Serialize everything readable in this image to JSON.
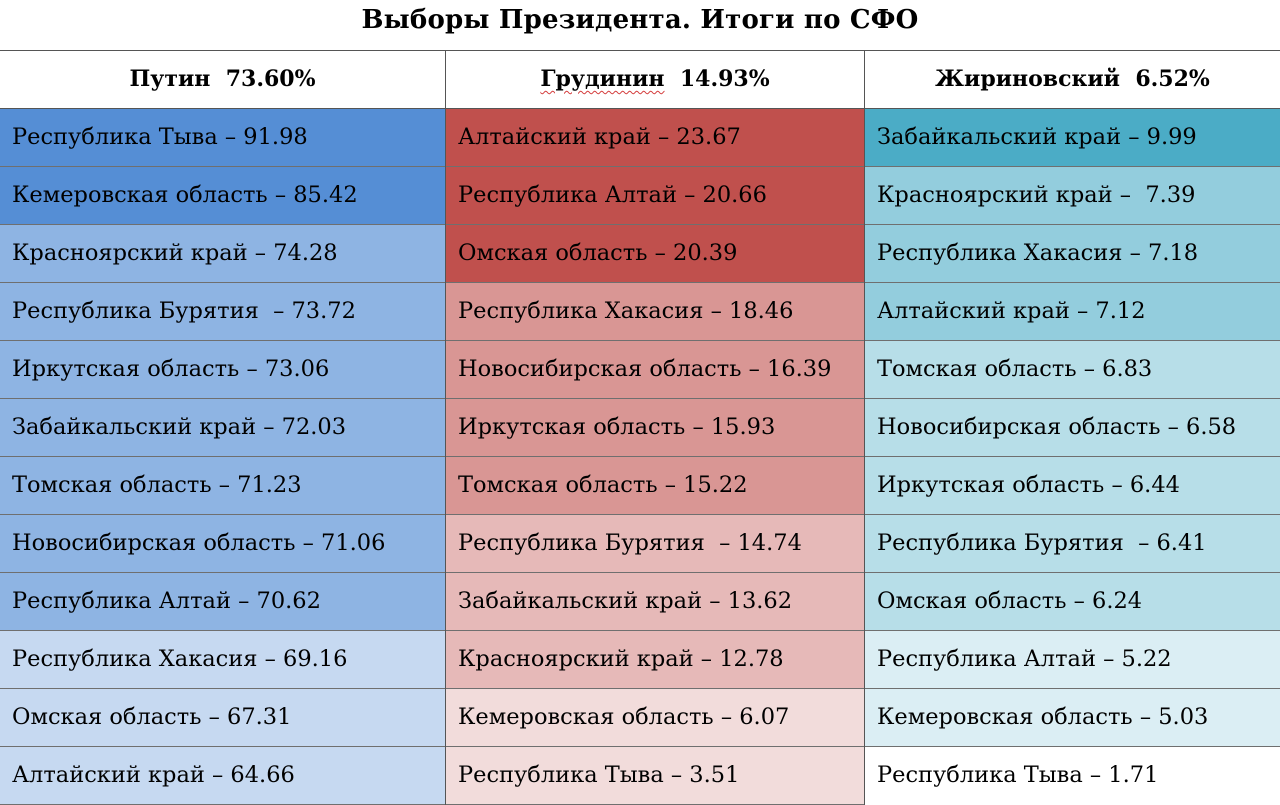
{
  "title": "Выборы Президента. Итоги по СФО",
  "columns": [
    {
      "candidate": "Путин",
      "percent": "73.60%",
      "rows": [
        {
          "text": "Республика Тыва – 91.98",
          "color": "#558ed5"
        },
        {
          "text": "Кемеровская область – 85.42",
          "color": "#558ed5"
        },
        {
          "text": "Красноярский край – 74.28",
          "color": "#8eb4e3"
        },
        {
          "text": "Республика Бурятия  – 73.72",
          "color": "#8eb4e3"
        },
        {
          "text": "Иркутская область – 73.06",
          "color": "#8eb4e3"
        },
        {
          "text": "Забайкальский край – 72.03",
          "color": "#8eb4e3"
        },
        {
          "text": "Томская область – 71.23",
          "color": "#8eb4e3"
        },
        {
          "text": "Новосибирская область – 71.06",
          "color": "#8eb4e3"
        },
        {
          "text": "Республика Алтай – 70.62",
          "color": "#8eb4e3"
        },
        {
          "text": "Республика Хакасия – 69.16",
          "color": "#c6d9f1"
        },
        {
          "text": "Омская область – 67.31",
          "color": "#c6d9f1"
        },
        {
          "text": "Алтайский край – 64.66",
          "color": "#c6d9f1"
        }
      ]
    },
    {
      "candidate": "Грудинин",
      "percent": "14.93%",
      "rows": [
        {
          "text": "Алтайский край – 23.67",
          "color": "#c0504d"
        },
        {
          "text": "Республика Алтай – 20.66",
          "color": "#c0504d"
        },
        {
          "text": "Омская область – 20.39",
          "color": "#c0504d"
        },
        {
          "text": "Республика Хакасия – 18.46",
          "color": "#d99694"
        },
        {
          "text": "Новосибирская область – 16.39",
          "color": "#d99694"
        },
        {
          "text": "Иркутская область – 15.93",
          "color": "#d99694"
        },
        {
          "text": "Томская область – 15.22",
          "color": "#d99694"
        },
        {
          "text": "Республика Бурятия  – 14.74",
          "color": "#e6b9b8"
        },
        {
          "text": "Забайкальский край – 13.62",
          "color": "#e6b9b8"
        },
        {
          "text": "Красноярский край – 12.78",
          "color": "#e6b9b8"
        },
        {
          "text": "Кемеровская область – 6.07",
          "color": "#f2dcdb"
        },
        {
          "text": "Республика Тыва – 3.51",
          "color": "#f2dcdb"
        }
      ]
    },
    {
      "candidate": "Жириновский",
      "percent": "6.52%",
      "rows": [
        {
          "text": "Забайкальский край – 9.99",
          "color": "#4bacc6"
        },
        {
          "text": "Красноярский край –  7.39",
          "color": "#93cddd"
        },
        {
          "text": "Республика Хакасия – 7.18",
          "color": "#93cddd"
        },
        {
          "text": "Алтайский край – 7.12",
          "color": "#93cddd"
        },
        {
          "text": "Томская область – 6.83",
          "color": "#b7dee8"
        },
        {
          "text": "Новосибирская область – 6.58",
          "color": "#b7dee8"
        },
        {
          "text": "Иркутская область – 6.44",
          "color": "#b7dee8"
        },
        {
          "text": "Республика Бурятия  – 6.41",
          "color": "#b7dee8"
        },
        {
          "text": "Омская область – 6.24",
          "color": "#b7dee8"
        },
        {
          "text": "Республика Алтай – 5.22",
          "color": "#dbeef4"
        },
        {
          "text": "Кемеровская область – 5.03",
          "color": "#dbeef4"
        },
        {
          "text": "Республика Тыва – 1.71",
          "color": "#ffffff"
        }
      ]
    }
  ]
}
